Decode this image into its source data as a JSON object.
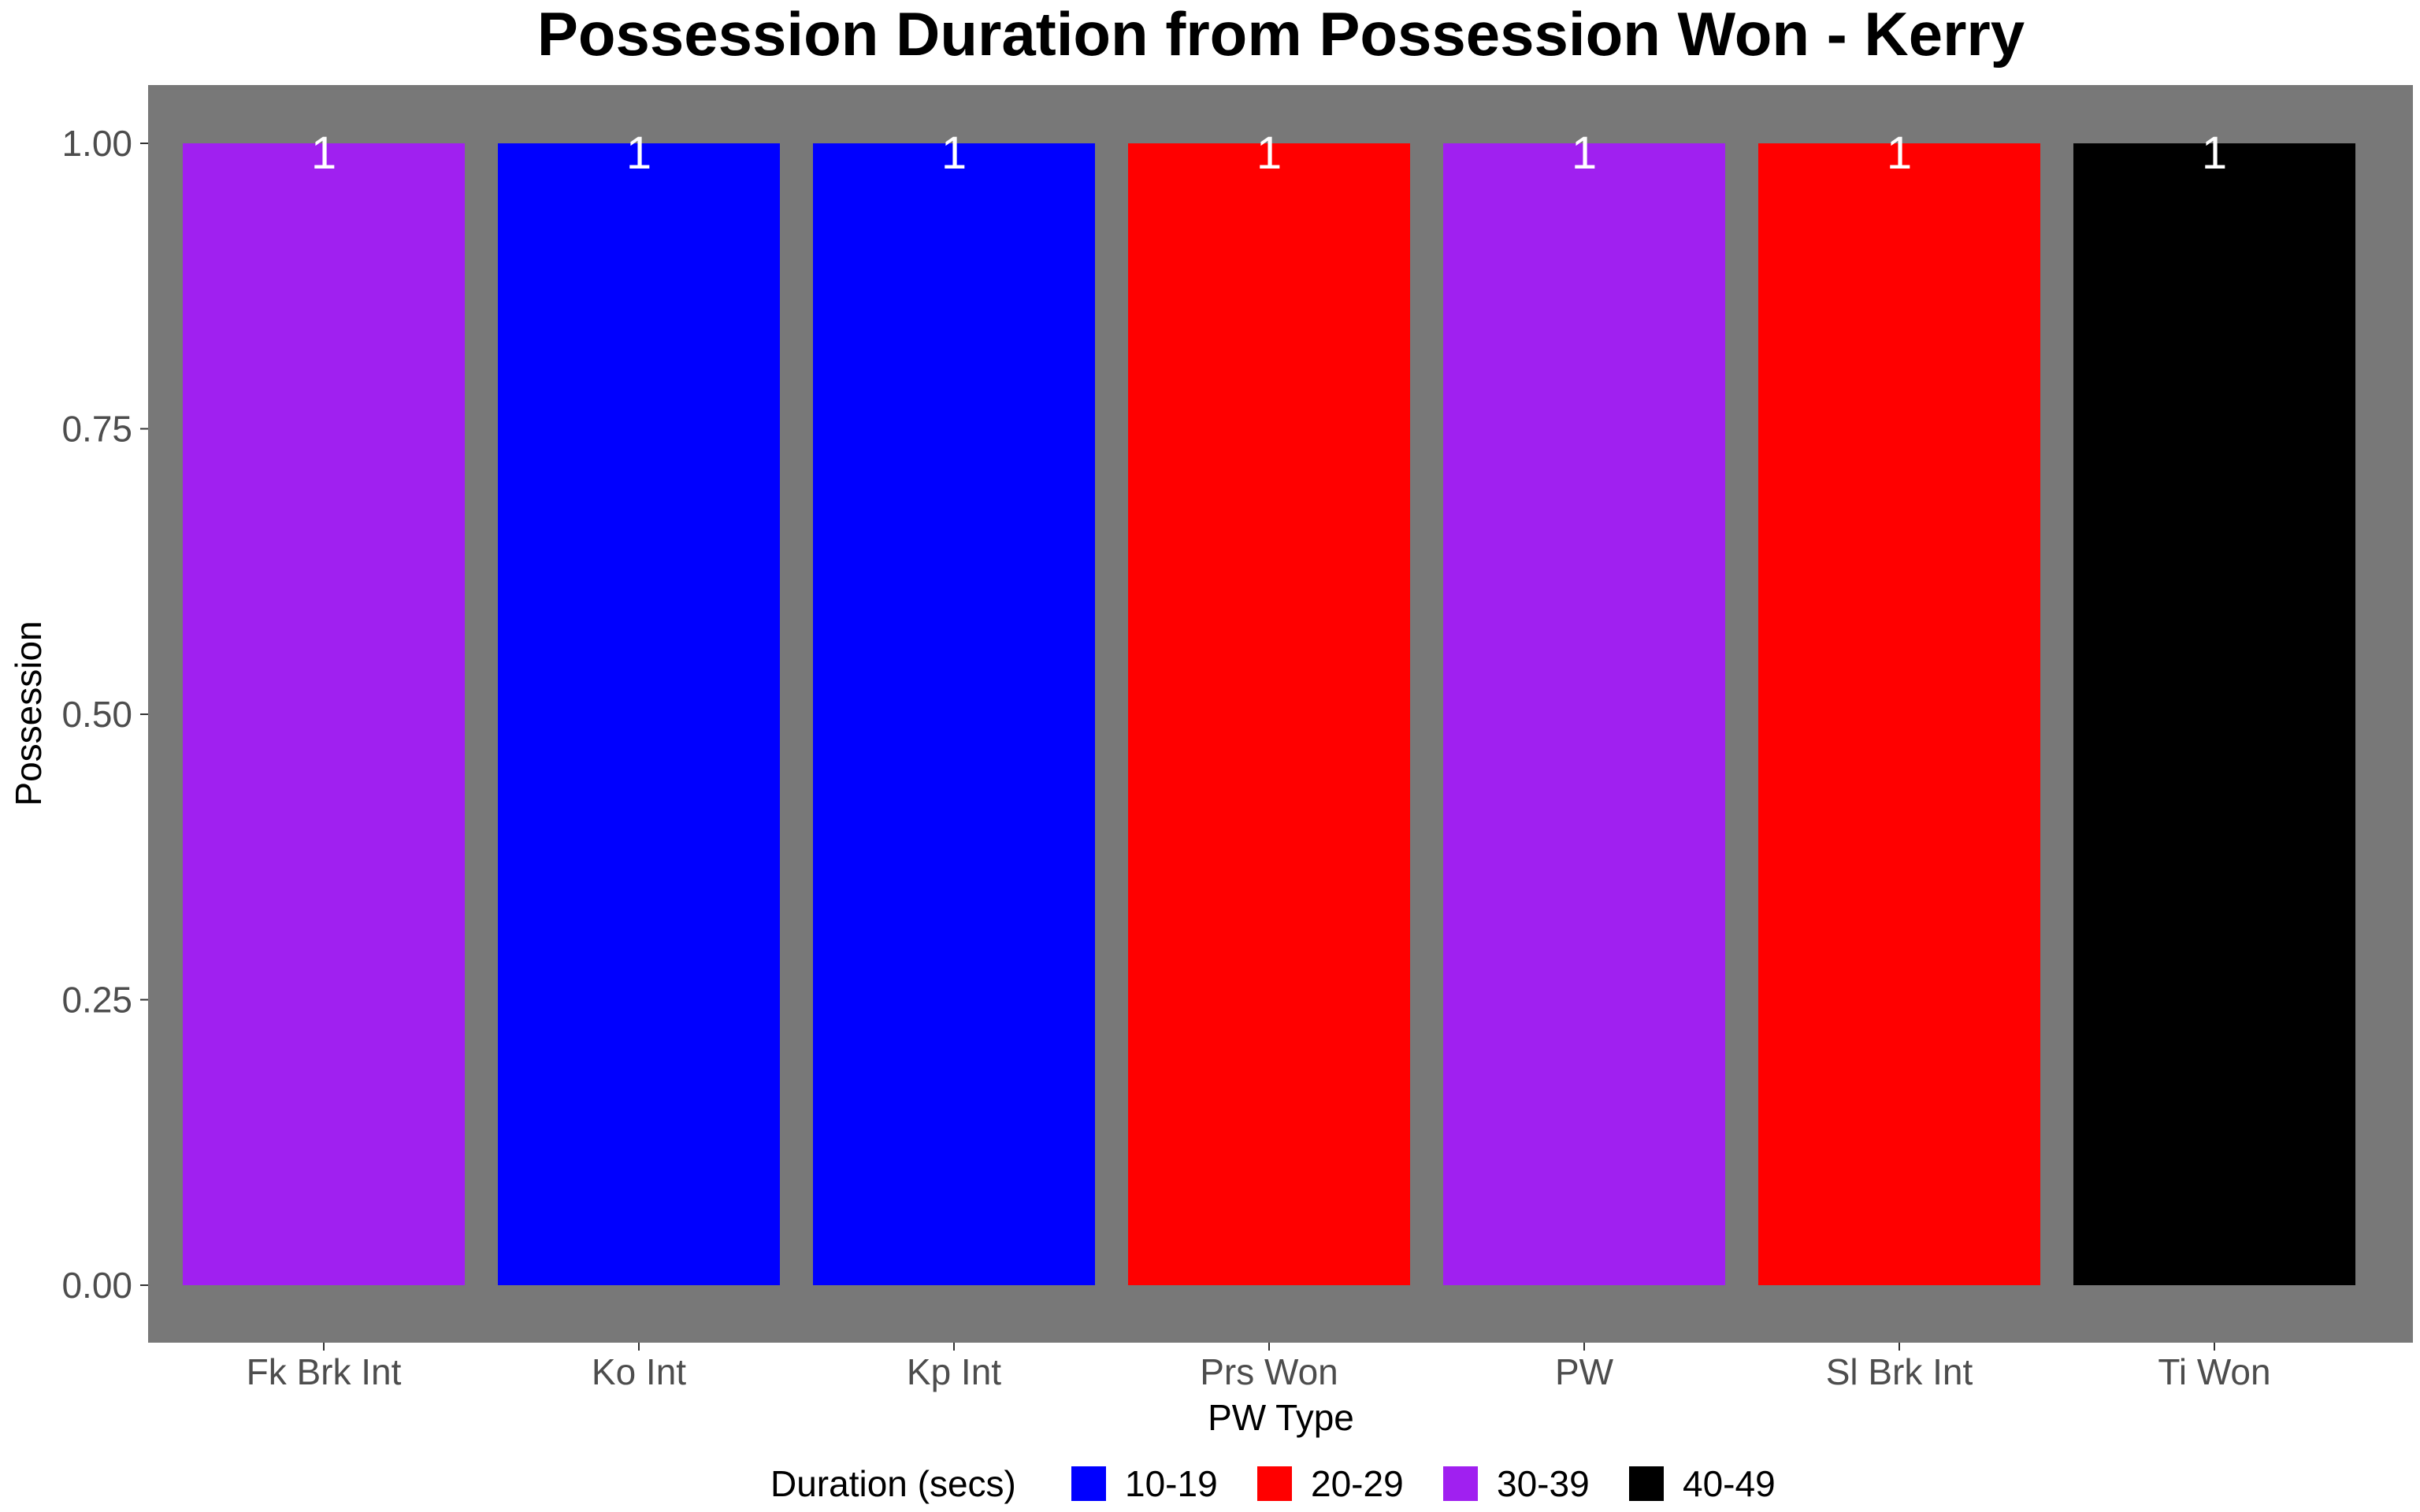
{
  "chart_data": {
    "type": "bar",
    "title": "Possession Duration from Possession Won - Kerry",
    "xlabel": "PW Type",
    "ylabel": "Possession",
    "categories": [
      "Fk Brk Int",
      "Ko Int",
      "Kp Int",
      "Prs Won",
      "PW",
      "Sl Brk Int",
      "Ti Won"
    ],
    "values": [
      1,
      1,
      1,
      1,
      1,
      1,
      1
    ],
    "data_labels": [
      "1",
      "1",
      "1",
      "1",
      "1",
      "1",
      "1"
    ],
    "bar_groups": [
      "30-39",
      "10-19",
      "10-19",
      "20-29",
      "30-39",
      "20-29",
      "40-49"
    ],
    "ylim": [
      0,
      1.05
    ],
    "yticks": [
      0,
      0.25,
      0.5,
      0.75,
      1
    ],
    "ytick_labels": [
      "0.00",
      "0.25",
      "0.50",
      "0.75",
      "1.00"
    ],
    "grid": false,
    "panel_background": "#787878",
    "legend": {
      "title": "Duration (secs)",
      "position": "bottom",
      "entries": [
        {
          "label": "10-19",
          "color": "#0000ff"
        },
        {
          "label": "20-29",
          "color": "#ff0000"
        },
        {
          "label": "30-39",
          "color": "#a020f0"
        },
        {
          "label": "40-49",
          "color": "#000000"
        }
      ]
    }
  }
}
